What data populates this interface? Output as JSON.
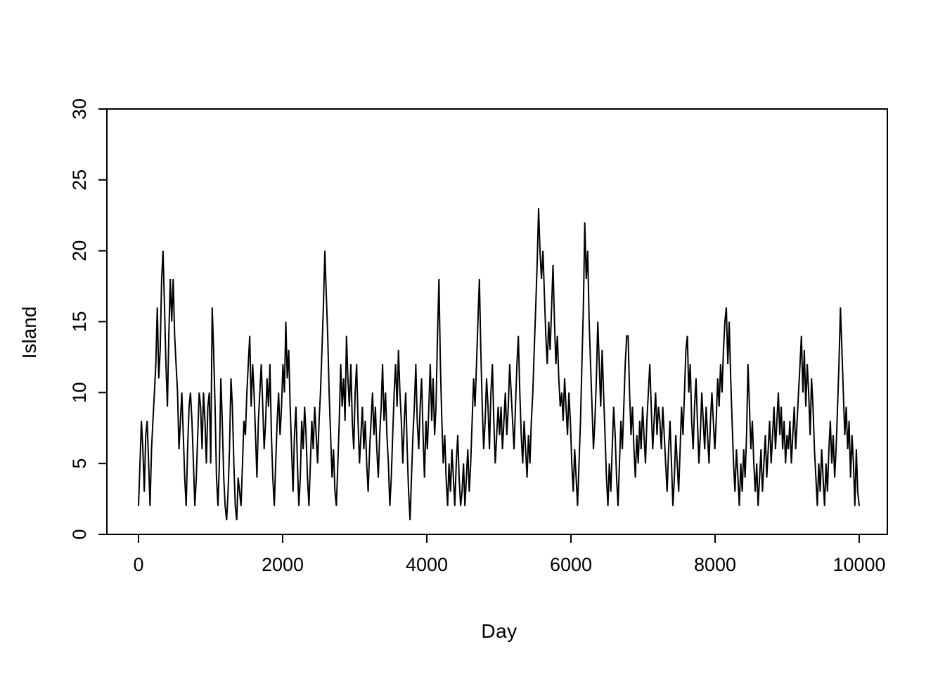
{
  "chart_data": {
    "type": "line",
    "title": "",
    "xlabel": "Day",
    "ylabel": "Island",
    "xlim": [
      0,
      10000
    ],
    "ylim": [
      0,
      30
    ],
    "xticks": [
      0,
      2000,
      4000,
      6000,
      8000,
      10000
    ],
    "yticks": [
      0,
      5,
      10,
      15,
      20,
      25,
      30
    ],
    "grid": false,
    "legend": "none",
    "line_color": "#000000",
    "line_width": 2,
    "description": "Metropolis sampler trace: island number visited on each day over 10000 days (values downsampled).",
    "x_start": 0,
    "x_end": 10000,
    "values": [
      2,
      5,
      8,
      6,
      3,
      7,
      8,
      5,
      2,
      6,
      8,
      10,
      12,
      16,
      11,
      13,
      18,
      20,
      16,
      12,
      9,
      14,
      18,
      15,
      18,
      14,
      12,
      10,
      6,
      8,
      10,
      7,
      4,
      2,
      6,
      9,
      10,
      8,
      5,
      2,
      4,
      7,
      10,
      9,
      6,
      10,
      8,
      5,
      9,
      10,
      5,
      16,
      13,
      9,
      4,
      2,
      5,
      11,
      8,
      4,
      2,
      1,
      3,
      6,
      11,
      9,
      5,
      2,
      1,
      4,
      3,
      2,
      5,
      8,
      7,
      10,
      12,
      14,
      9,
      12,
      10,
      7,
      4,
      8,
      10,
      12,
      9,
      6,
      8,
      11,
      9,
      12,
      7,
      4,
      2,
      5,
      8,
      10,
      7,
      9,
      12,
      10,
      15,
      11,
      13,
      9,
      6,
      3,
      7,
      9,
      5,
      2,
      4,
      8,
      6,
      9,
      7,
      4,
      2,
      5,
      8,
      6,
      9,
      7,
      5,
      8,
      10,
      13,
      16,
      20,
      17,
      14,
      10,
      7,
      4,
      6,
      3,
      2,
      5,
      8,
      12,
      9,
      11,
      8,
      14,
      11,
      9,
      12,
      8,
      6,
      10,
      12,
      8,
      5,
      7,
      9,
      6,
      8,
      5,
      3,
      6,
      8,
      10,
      7,
      9,
      6,
      4,
      7,
      9,
      12,
      8,
      10,
      7,
      5,
      2,
      4,
      7,
      10,
      12,
      9,
      13,
      10,
      8,
      5,
      8,
      10,
      6,
      3,
      1,
      4,
      7,
      9,
      12,
      8,
      6,
      9,
      11,
      7,
      4,
      8,
      6,
      9,
      12,
      8,
      11,
      7,
      9,
      14,
      18,
      12,
      8,
      5,
      7,
      4,
      2,
      5,
      3,
      6,
      4,
      2,
      5,
      7,
      4,
      2,
      3,
      5,
      2,
      4,
      6,
      3,
      5,
      8,
      11,
      9,
      12,
      15,
      18,
      13,
      9,
      6,
      8,
      11,
      9,
      6,
      10,
      12,
      8,
      5,
      7,
      9,
      7,
      9,
      6,
      8,
      10,
      7,
      9,
      12,
      10,
      8,
      6,
      9,
      12,
      14,
      10,
      7,
      5,
      8,
      6,
      4,
      7,
      5,
      8,
      10,
      13,
      16,
      19,
      23,
      20,
      18,
      20,
      17,
      14,
      12,
      15,
      13,
      16,
      19,
      15,
      12,
      14,
      11,
      9,
      10,
      8,
      11,
      9,
      7,
      10,
      8,
      5,
      3,
      6,
      4,
      2,
      5,
      8,
      12,
      16,
      22,
      18,
      20,
      15,
      12,
      9,
      6,
      8,
      11,
      15,
      12,
      9,
      13,
      10,
      7,
      4,
      2,
      5,
      3,
      6,
      9,
      7,
      4,
      2,
      5,
      8,
      6,
      9,
      12,
      14,
      14,
      10,
      7,
      9,
      6,
      4,
      7,
      5,
      8,
      6,
      9,
      7,
      5,
      8,
      10,
      12,
      9,
      6,
      8,
      10,
      7,
      9,
      8,
      6,
      9,
      7,
      5,
      3,
      6,
      8,
      5,
      2,
      4,
      7,
      5,
      3,
      6,
      9,
      7,
      10,
      13,
      14,
      10,
      12,
      8,
      6,
      9,
      11,
      8,
      5,
      7,
      10,
      8,
      6,
      9,
      7,
      5,
      8,
      10,
      8,
      6,
      8,
      11,
      9,
      12,
      10,
      13,
      15,
      16,
      12,
      15,
      11,
      8,
      5,
      3,
      6,
      4,
      2,
      5,
      3,
      6,
      4,
      7,
      12,
      9,
      6,
      8,
      5,
      3,
      5,
      2,
      4,
      6,
      3,
      5,
      7,
      4,
      6,
      8,
      5,
      7,
      9,
      6,
      8,
      10,
      7,
      9,
      6,
      8,
      5,
      7,
      6,
      8,
      5,
      7,
      9,
      6,
      8,
      10,
      12,
      14,
      10,
      13,
      9,
      12,
      10,
      7,
      11,
      9,
      6,
      4,
      2,
      5,
      3,
      6,
      4,
      2,
      5,
      3,
      6,
      8,
      5,
      7,
      4,
      6,
      9,
      12,
      16,
      13,
      10,
      7,
      9,
      6,
      8,
      4,
      7,
      5,
      2,
      6,
      3,
      2
    ]
  }
}
